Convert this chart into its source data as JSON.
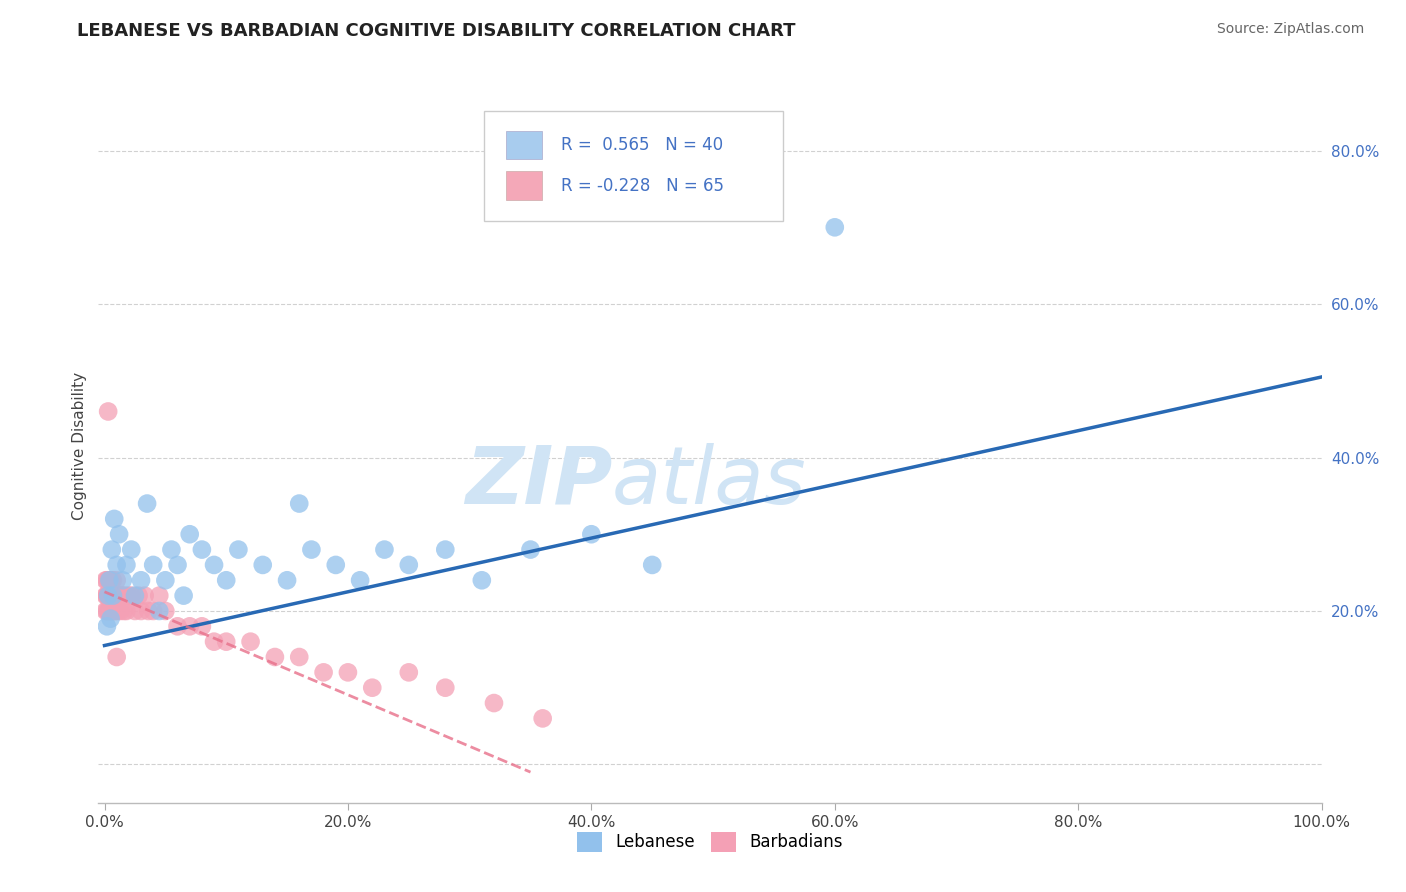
{
  "title": "LEBANESE VS BARBADIAN COGNITIVE DISABILITY CORRELATION CHART",
  "source_text": "Source: ZipAtlas.com",
  "ylabel": "Cognitive Disability",
  "xlim": [
    -0.005,
    1.0
  ],
  "ylim": [
    -0.05,
    0.88
  ],
  "xticks": [
    0.0,
    0.2,
    0.4,
    0.6,
    0.8,
    1.0
  ],
  "xtick_labels": [
    "0.0%",
    "20.0%",
    "40.0%",
    "60.0%",
    "80.0%",
    "100.0%"
  ],
  "yticks": [
    0.0,
    0.2,
    0.4,
    0.6,
    0.8
  ],
  "ytick_labels": [
    "",
    "20.0%",
    "40.0%",
    "60.0%",
    "80.0%"
  ],
  "blue_color": "#92C1EC",
  "pink_color": "#F4A0B5",
  "blue_line_color": "#2869B4",
  "pink_line_color": "#E8708A",
  "legend_blue_color": "#A8CCEE",
  "legend_pink_color": "#F4A8B8",
  "watermark_zip": "ZIP",
  "watermark_atlas": "atlas",
  "watermark_color": "#D0E4F5",
  "grid_color": "#CCCCCC",
  "title_fontsize": 13,
  "axis_label_fontsize": 11,
  "tick_fontsize": 11,
  "source_fontsize": 10,
  "lebanese_x": [
    0.002,
    0.003,
    0.004,
    0.005,
    0.006,
    0.007,
    0.008,
    0.01,
    0.012,
    0.015,
    0.018,
    0.022,
    0.025,
    0.03,
    0.035,
    0.04,
    0.045,
    0.05,
    0.055,
    0.06,
    0.065,
    0.07,
    0.08,
    0.09,
    0.1,
    0.11,
    0.13,
    0.15,
    0.17,
    0.19,
    0.21,
    0.23,
    0.25,
    0.28,
    0.31,
    0.35,
    0.4,
    0.45,
    0.6,
    0.16
  ],
  "lebanese_y": [
    0.18,
    0.22,
    0.24,
    0.19,
    0.28,
    0.22,
    0.32,
    0.26,
    0.3,
    0.24,
    0.26,
    0.28,
    0.22,
    0.24,
    0.34,
    0.26,
    0.2,
    0.24,
    0.28,
    0.26,
    0.22,
    0.3,
    0.28,
    0.26,
    0.24,
    0.28,
    0.26,
    0.24,
    0.28,
    0.26,
    0.24,
    0.28,
    0.26,
    0.28,
    0.24,
    0.28,
    0.3,
    0.26,
    0.7,
    0.34
  ],
  "barbadian_x": [
    0.001,
    0.001,
    0.001,
    0.002,
    0.002,
    0.002,
    0.002,
    0.003,
    0.003,
    0.003,
    0.003,
    0.004,
    0.004,
    0.004,
    0.004,
    0.005,
    0.005,
    0.005,
    0.006,
    0.006,
    0.006,
    0.007,
    0.007,
    0.007,
    0.008,
    0.008,
    0.009,
    0.009,
    0.01,
    0.01,
    0.011,
    0.012,
    0.013,
    0.014,
    0.015,
    0.016,
    0.017,
    0.018,
    0.02,
    0.022,
    0.025,
    0.028,
    0.03,
    0.033,
    0.036,
    0.04,
    0.045,
    0.05,
    0.06,
    0.07,
    0.08,
    0.09,
    0.1,
    0.12,
    0.14,
    0.16,
    0.18,
    0.2,
    0.22,
    0.25,
    0.28,
    0.32,
    0.36,
    0.01,
    0.003
  ],
  "barbadian_y": [
    0.22,
    0.24,
    0.2,
    0.22,
    0.24,
    0.2,
    0.22,
    0.22,
    0.24,
    0.2,
    0.22,
    0.22,
    0.2,
    0.24,
    0.22,
    0.22,
    0.24,
    0.2,
    0.22,
    0.2,
    0.24,
    0.22,
    0.2,
    0.24,
    0.22,
    0.2,
    0.22,
    0.2,
    0.22,
    0.24,
    0.2,
    0.22,
    0.2,
    0.22,
    0.22,
    0.2,
    0.22,
    0.2,
    0.22,
    0.22,
    0.2,
    0.22,
    0.2,
    0.22,
    0.2,
    0.2,
    0.22,
    0.2,
    0.18,
    0.18,
    0.18,
    0.16,
    0.16,
    0.16,
    0.14,
    0.14,
    0.12,
    0.12,
    0.1,
    0.12,
    0.1,
    0.08,
    0.06,
    0.14,
    0.46
  ],
  "leb_line_x0": 0.0,
  "leb_line_y0": 0.155,
  "leb_line_x1": 1.0,
  "leb_line_y1": 0.505,
  "bar_line_x0": 0.0,
  "bar_line_y0": 0.225,
  "bar_line_x1": 0.35,
  "bar_line_y1": -0.01
}
